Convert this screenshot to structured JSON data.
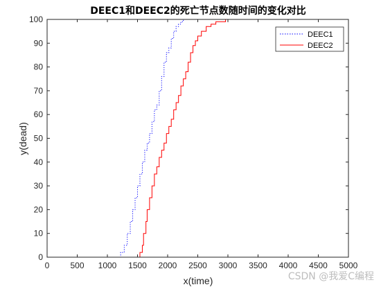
{
  "chart_data": {
    "type": "line",
    "title": "DEEC1和DEEC2的死亡节点数随时间的变化对比",
    "xlabel": "x(time)",
    "ylabel": "y(dead)",
    "xlim": [
      0,
      5000
    ],
    "ylim": [
      0,
      100
    ],
    "xticks": [
      0,
      500,
      1000,
      1500,
      2000,
      2500,
      3000,
      3500,
      4000,
      4500,
      5000
    ],
    "yticks": [
      0,
      10,
      20,
      30,
      40,
      50,
      60,
      70,
      80,
      90,
      100
    ],
    "grid": false,
    "legend_position": "top-right",
    "series": [
      {
        "name": "DEEC1",
        "color": "#0000ff",
        "style": "dotted",
        "x": [
          0,
          1180,
          1220,
          1280,
          1330,
          1380,
          1420,
          1460,
          1500,
          1540,
          1580,
          1620,
          1660,
          1700,
          1740,
          1780,
          1820,
          1860,
          1900,
          1940,
          1980,
          2020,
          2060,
          2100,
          2140,
          2180,
          2220,
          2260,
          2300,
          5000
        ],
        "y": [
          0,
          0,
          2,
          5,
          10,
          15,
          20,
          25,
          30,
          35,
          40,
          45,
          48,
          52,
          57,
          62,
          64,
          70,
          76,
          82,
          86,
          88,
          92,
          95,
          97,
          98,
          99,
          100,
          100,
          100
        ]
      },
      {
        "name": "DEEC2",
        "color": "#ff0000",
        "style": "solid",
        "x": [
          0,
          1510,
          1540,
          1580,
          1600,
          1640,
          1660,
          1700,
          1740,
          1780,
          1820,
          1860,
          1900,
          1940,
          1980,
          2020,
          2060,
          2100,
          2140,
          2180,
          2220,
          2260,
          2300,
          2340,
          2380,
          2420,
          2460,
          2500,
          2560,
          2640,
          2720,
          2800,
          2880,
          2960,
          3060,
          3150,
          5000
        ],
        "y": [
          0,
          0,
          2,
          5,
          10,
          15,
          20,
          25,
          30,
          35,
          38,
          42,
          45,
          48,
          52,
          55,
          58,
          62,
          65,
          68,
          72,
          75,
          78,
          82,
          86,
          89,
          91,
          93,
          95,
          97,
          98,
          99,
          99,
          100,
          100,
          100,
          100
        ]
      }
    ]
  },
  "watermark": "CSDN @我爱C编程"
}
